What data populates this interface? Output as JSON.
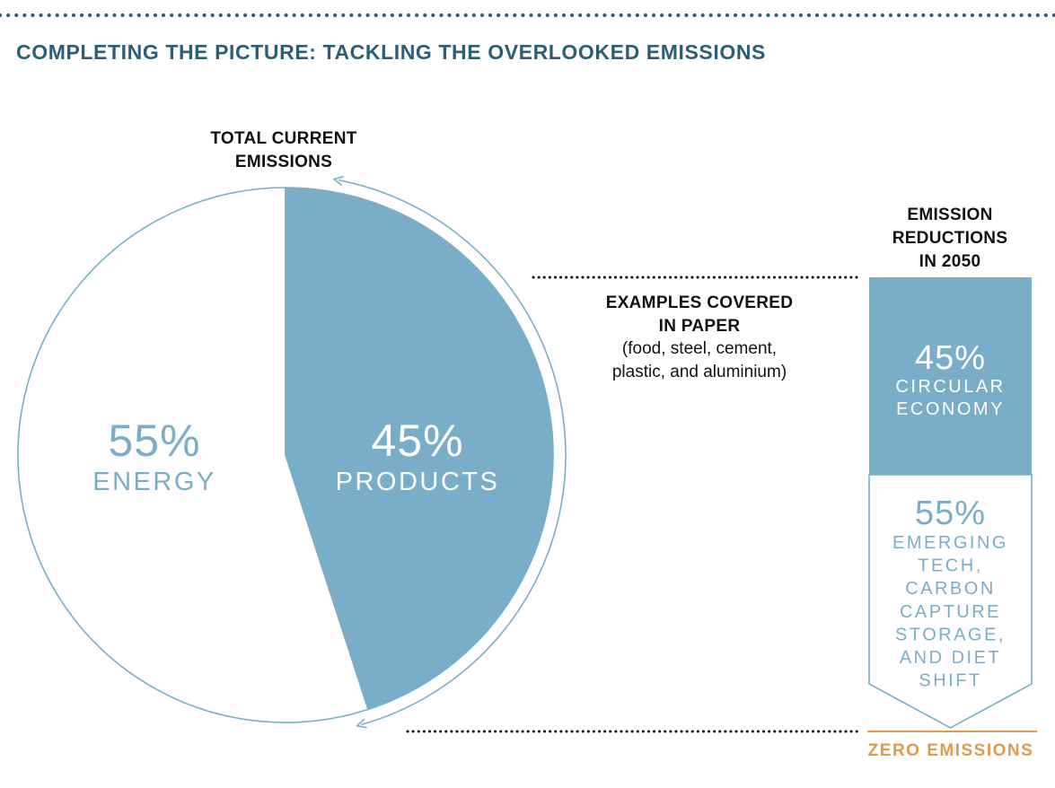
{
  "title": "COMPLETING THE PICTURE: TACKLING THE OVERLOOKED EMISSIONS",
  "colors": {
    "title": "#2a5f78",
    "accent": "#7aaec8",
    "light_text": "#7aaec8",
    "white": "#ffffff",
    "orange": "#e09a4c",
    "dark": "#111111"
  },
  "chart_data": [
    {
      "type": "pie",
      "title_lines": [
        "TOTAL CURRENT",
        "EMISSIONS"
      ],
      "labels": [
        "PRODUCTS",
        "ENERGY"
      ],
      "values": [
        45,
        55
      ],
      "value_labels": [
        "45%",
        "55%"
      ],
      "slice_fill": [
        "accent",
        "white"
      ]
    },
    {
      "type": "bar",
      "title_lines": [
        "EMISSION",
        "REDUCTIONS",
        "IN 2050"
      ],
      "segments": [
        {
          "value": 45,
          "pct_label": "45%",
          "label_lines": [
            "CIRCULAR",
            "ECONOMY"
          ]
        },
        {
          "value": 55,
          "pct_label": "55%",
          "label_lines": [
            "EMERGING",
            "TECH,",
            "CARBON",
            "CAPTURE",
            "STORAGE,",
            "AND DIET",
            "SHIFT"
          ]
        }
      ],
      "baseline_label": "ZERO EMISSIONS"
    }
  ],
  "annotation": {
    "heading_lines": [
      "EXAMPLES COVERED",
      "IN PAPER"
    ],
    "detail_lines": [
      "(food, steel, cement,",
      "plastic, and aluminium)"
    ]
  }
}
